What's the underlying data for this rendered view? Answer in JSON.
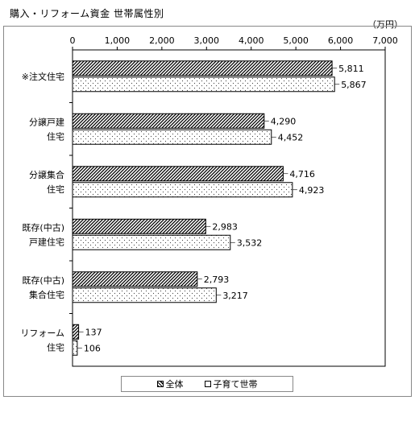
{
  "title": "購入・リフォーム資金 世帯属性別",
  "unit": "（万円）",
  "legend": {
    "all": "全体",
    "child": "子育て世帯"
  },
  "chart_data": {
    "type": "bar",
    "orientation": "horizontal",
    "title": "購入・リフォーム資金 世帯属性別",
    "unit": "（万円）",
    "xlim": [
      0,
      7000
    ],
    "ticks": [
      "0",
      "1,000",
      "2,000",
      "3,000",
      "4,000",
      "5,000",
      "6,000",
      "7,000"
    ],
    "categories": [
      [
        "※注文住宅"
      ],
      [
        "分譲戸建",
        "住宅"
      ],
      [
        "分譲集合",
        "住宅"
      ],
      [
        "既存(中古)",
        "戸建住宅"
      ],
      [
        "既存(中古)",
        "集合住宅"
      ],
      [
        "リフォーム",
        "住宅"
      ]
    ],
    "series": [
      {
        "name": "全体",
        "pattern": "diagonal",
        "values": [
          5811,
          4290,
          4716,
          2983,
          2793,
          137
        ],
        "labels": [
          "5,811",
          "4,290",
          "4,716",
          "2,983",
          "2,793",
          "137"
        ]
      },
      {
        "name": "子育て世帯",
        "pattern": "dots",
        "values": [
          5867,
          4452,
          4923,
          3532,
          3217,
          106
        ],
        "labels": [
          "5,867",
          "4,452",
          "4,923",
          "3,532",
          "3,217",
          "106"
        ]
      }
    ],
    "legend_position": "bottom",
    "grid": false
  }
}
